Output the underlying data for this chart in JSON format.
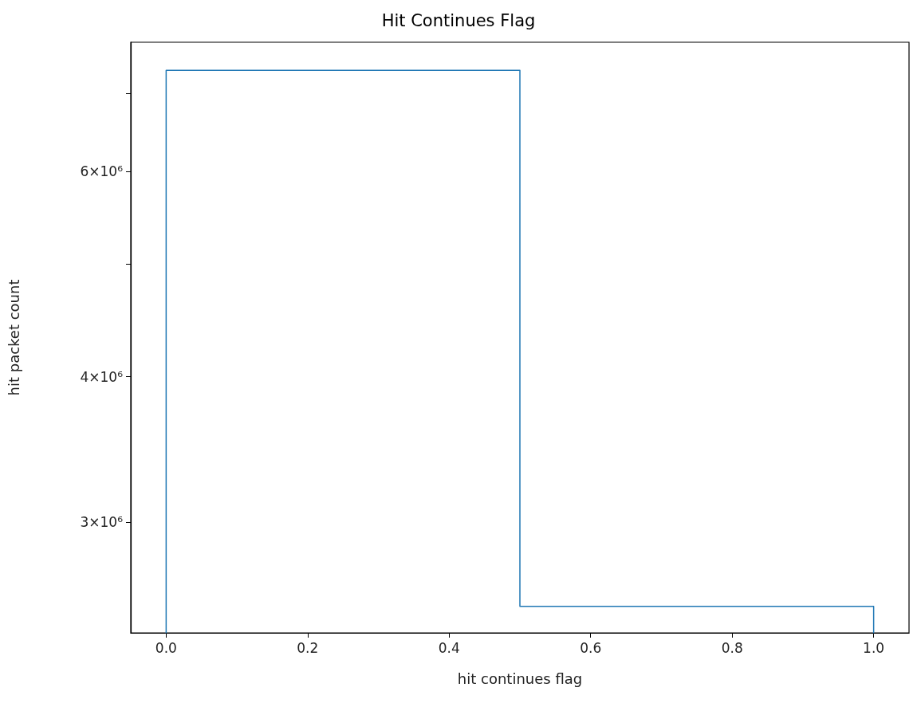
{
  "chart_data": {
    "type": "histogram",
    "title": "Hit Continues Flag",
    "xlabel": "hit continues flag",
    "ylabel": "hit packet count",
    "bins": [
      0,
      0.5,
      1
    ],
    "values": [
      7330000,
      2540000
    ],
    "color": "#1f77b4",
    "log": true,
    "xlim": [
      -0.05,
      1.05
    ],
    "xticks": [
      {
        "value": 0,
        "label": "0.0"
      },
      {
        "value": 0.2,
        "label": "0.2"
      },
      {
        "value": 0.4,
        "label": "0.4"
      },
      {
        "value": 0.6,
        "label": "0.6"
      },
      {
        "value": 0.8,
        "label": "0.8"
      },
      {
        "value": 1,
        "label": "1.0"
      }
    ],
    "ylim": [
      2410000,
      7750000
    ],
    "yticks": [
      {
        "value": 3000000,
        "label": "3×10⁶"
      },
      {
        "value": 4000000,
        "label": "4×10⁶"
      },
      {
        "value": 5000000,
        "label": null
      },
      {
        "value": 6000000,
        "label": "6×10⁶"
      },
      {
        "value": 7000000,
        "label": null
      }
    ]
  }
}
